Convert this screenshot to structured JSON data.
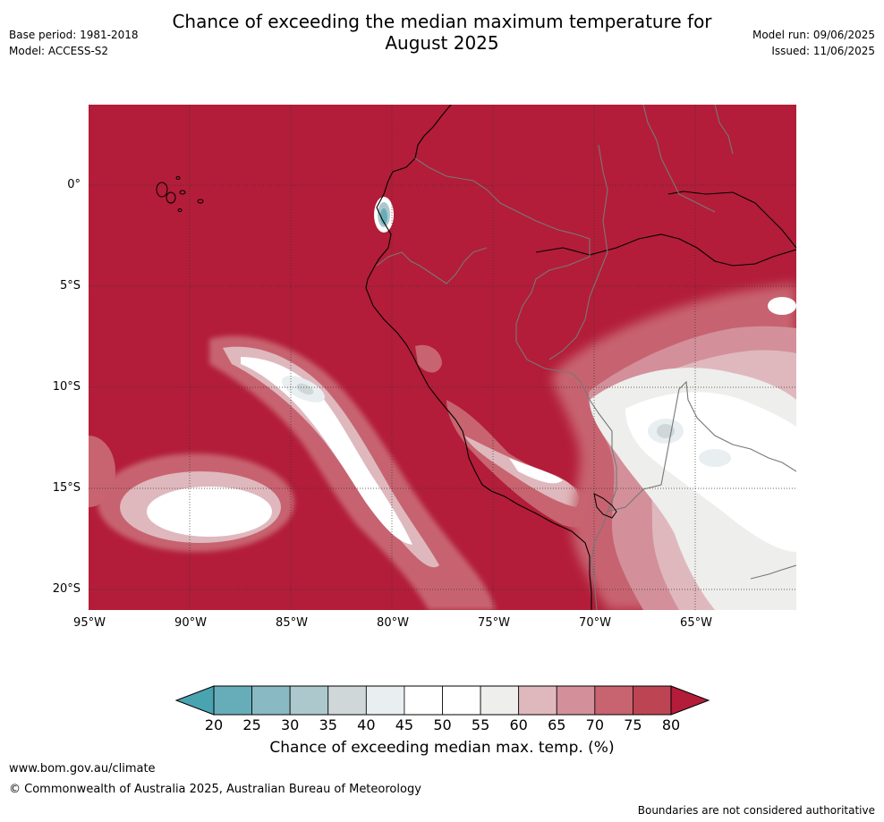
{
  "header": {
    "title_line1": "Chance of exceeding the median maximum temperature for",
    "title_line2": "August 2025",
    "base_period": "Base period: 1981-2018",
    "model": "Model: ACCESS-S2",
    "model_run": "Model run: 09/06/2025",
    "issued": "Issued: 11/06/2025"
  },
  "map": {
    "lat_labels": [
      "0°",
      "5°S",
      "10°S",
      "15°S",
      "20°S"
    ],
    "lon_labels": [
      "95°W",
      "90°W",
      "85°W",
      "80°W",
      "75°W",
      "70°W",
      "65°W"
    ],
    "background_color": "#b31d39"
  },
  "colorbar": {
    "ticks": [
      "20",
      "25",
      "30",
      "35",
      "40",
      "45",
      "50",
      "55",
      "60",
      "65",
      "70",
      "75",
      "80"
    ],
    "colors": [
      "#67adb9",
      "#89b9c2",
      "#adc8cc",
      "#cfd7d9",
      "#e9eef0",
      "#ffffff",
      "#ffffff",
      "#eeeeec",
      "#dfb8bd",
      "#d3909a",
      "#c7646f",
      "#bd4553"
    ],
    "low_extend_color": "#4aa3b0",
    "high_extend_color": "#b31d39",
    "label": "Chance of exceeding median max. temp. (%)"
  },
  "footer": {
    "url": "www.bom.gov.au/climate",
    "copyright": "© Commonwealth of Australia 2025, Australian Bureau of Meteorology",
    "disclaimer": "Boundaries are not considered authoritative"
  }
}
